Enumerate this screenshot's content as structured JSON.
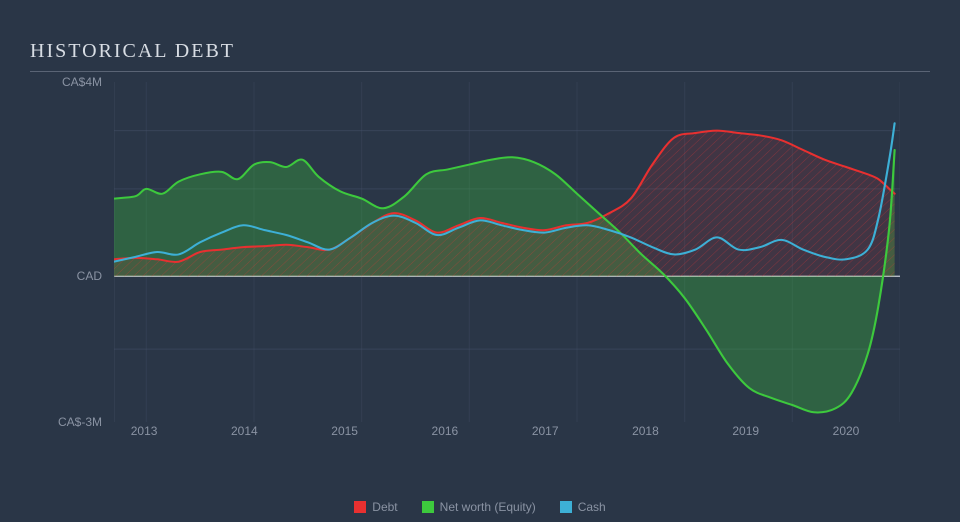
{
  "title": "HISTORICAL DEBT",
  "background_color": "#2a3647",
  "grid_color": "#47526a",
  "axis_line_color": "#c8cdd6",
  "text_color": "#8a93a3",
  "title_color": "#d8dde4",
  "title_fontsize": 20,
  "label_fontsize": 12,
  "xlim": [
    2012.7,
    2020
  ],
  "ylim": [
    -3,
    4
  ],
  "y_ticks": [
    {
      "v": 4,
      "label": "CA$4M"
    },
    {
      "v": 0,
      "label": "CAD"
    },
    {
      "v": -3,
      "label": "CA$-3M"
    }
  ],
  "x_ticks": [
    2013,
    2014,
    2015,
    2016,
    2017,
    2018,
    2019,
    2020
  ],
  "gridlines_y": [
    3,
    1.8,
    -1.5
  ],
  "series": [
    {
      "name": "Debt",
      "color": "#e83030",
      "fill": "rgba(232,48,48,0.25)",
      "hatch": true,
      "data": [
        [
          2012.7,
          0.35
        ],
        [
          2012.9,
          0.38
        ],
        [
          2013.1,
          0.35
        ],
        [
          2013.3,
          0.3
        ],
        [
          2013.5,
          0.5
        ],
        [
          2013.7,
          0.55
        ],
        [
          2013.9,
          0.6
        ],
        [
          2014.1,
          0.62
        ],
        [
          2014.3,
          0.65
        ],
        [
          2014.5,
          0.6
        ],
        [
          2014.7,
          0.55
        ],
        [
          2014.9,
          0.8
        ],
        [
          2015.1,
          1.1
        ],
        [
          2015.3,
          1.3
        ],
        [
          2015.5,
          1.15
        ],
        [
          2015.7,
          0.9
        ],
        [
          2015.9,
          1.05
        ],
        [
          2016.1,
          1.2
        ],
        [
          2016.3,
          1.1
        ],
        [
          2016.5,
          1.0
        ],
        [
          2016.7,
          0.95
        ],
        [
          2016.9,
          1.05
        ],
        [
          2017.1,
          1.1
        ],
        [
          2017.3,
          1.3
        ],
        [
          2017.5,
          1.6
        ],
        [
          2017.7,
          2.3
        ],
        [
          2017.9,
          2.85
        ],
        [
          2018.1,
          2.95
        ],
        [
          2018.3,
          3.0
        ],
        [
          2018.5,
          2.95
        ],
        [
          2018.7,
          2.9
        ],
        [
          2018.9,
          2.8
        ],
        [
          2019.1,
          2.6
        ],
        [
          2019.3,
          2.4
        ],
        [
          2019.5,
          2.25
        ],
        [
          2019.7,
          2.1
        ],
        [
          2019.8,
          2.0
        ],
        [
          2019.9,
          1.8
        ],
        [
          2019.95,
          1.7
        ]
      ]
    },
    {
      "name": "Net worth (Equity)",
      "color": "#3dc93d",
      "fill": "rgba(61,201,61,0.30)",
      "hatch": false,
      "data": [
        [
          2012.7,
          1.6
        ],
        [
          2012.9,
          1.65
        ],
        [
          2013.0,
          1.8
        ],
        [
          2013.15,
          1.7
        ],
        [
          2013.3,
          1.95
        ],
        [
          2013.5,
          2.1
        ],
        [
          2013.7,
          2.15
        ],
        [
          2013.85,
          2.0
        ],
        [
          2014.0,
          2.3
        ],
        [
          2014.15,
          2.35
        ],
        [
          2014.3,
          2.25
        ],
        [
          2014.45,
          2.4
        ],
        [
          2014.6,
          2.05
        ],
        [
          2014.8,
          1.75
        ],
        [
          2015.0,
          1.6
        ],
        [
          2015.2,
          1.4
        ],
        [
          2015.4,
          1.65
        ],
        [
          2015.6,
          2.1
        ],
        [
          2015.8,
          2.2
        ],
        [
          2016.0,
          2.3
        ],
        [
          2016.2,
          2.4
        ],
        [
          2016.4,
          2.45
        ],
        [
          2016.6,
          2.35
        ],
        [
          2016.8,
          2.1
        ],
        [
          2017.0,
          1.7
        ],
        [
          2017.2,
          1.3
        ],
        [
          2017.4,
          0.9
        ],
        [
          2017.6,
          0.45
        ],
        [
          2017.8,
          0.05
        ],
        [
          2018.0,
          -0.45
        ],
        [
          2018.2,
          -1.1
        ],
        [
          2018.4,
          -1.8
        ],
        [
          2018.6,
          -2.3
        ],
        [
          2018.8,
          -2.5
        ],
        [
          2019.0,
          -2.65
        ],
        [
          2019.2,
          -2.8
        ],
        [
          2019.4,
          -2.72
        ],
        [
          2019.55,
          -2.4
        ],
        [
          2019.7,
          -1.6
        ],
        [
          2019.8,
          -0.6
        ],
        [
          2019.9,
          1.0
        ],
        [
          2019.95,
          2.6
        ]
      ]
    },
    {
      "name": "Cash",
      "color": "#3db0d6",
      "fill": "none",
      "hatch": false,
      "data": [
        [
          2012.7,
          0.3
        ],
        [
          2012.9,
          0.4
        ],
        [
          2013.1,
          0.5
        ],
        [
          2013.3,
          0.45
        ],
        [
          2013.5,
          0.7
        ],
        [
          2013.7,
          0.9
        ],
        [
          2013.9,
          1.05
        ],
        [
          2014.1,
          0.95
        ],
        [
          2014.3,
          0.85
        ],
        [
          2014.5,
          0.7
        ],
        [
          2014.7,
          0.55
        ],
        [
          2014.9,
          0.8
        ],
        [
          2015.1,
          1.1
        ],
        [
          2015.3,
          1.25
        ],
        [
          2015.5,
          1.1
        ],
        [
          2015.7,
          0.85
        ],
        [
          2015.9,
          1.0
        ],
        [
          2016.1,
          1.15
        ],
        [
          2016.3,
          1.05
        ],
        [
          2016.5,
          0.95
        ],
        [
          2016.7,
          0.9
        ],
        [
          2016.9,
          1.0
        ],
        [
          2017.1,
          1.05
        ],
        [
          2017.3,
          0.95
        ],
        [
          2017.5,
          0.8
        ],
        [
          2017.7,
          0.6
        ],
        [
          2017.9,
          0.45
        ],
        [
          2018.1,
          0.55
        ],
        [
          2018.3,
          0.8
        ],
        [
          2018.5,
          0.55
        ],
        [
          2018.7,
          0.6
        ],
        [
          2018.9,
          0.75
        ],
        [
          2019.1,
          0.55
        ],
        [
          2019.3,
          0.4
        ],
        [
          2019.5,
          0.35
        ],
        [
          2019.7,
          0.55
        ],
        [
          2019.8,
          1.2
        ],
        [
          2019.9,
          2.4
        ],
        [
          2019.95,
          3.15
        ]
      ]
    }
  ],
  "legend": [
    {
      "label": "Debt",
      "color": "#e83030"
    },
    {
      "label": "Net worth (Equity)",
      "color": "#3dc93d"
    },
    {
      "label": "Cash",
      "color": "#3db0d6"
    }
  ]
}
